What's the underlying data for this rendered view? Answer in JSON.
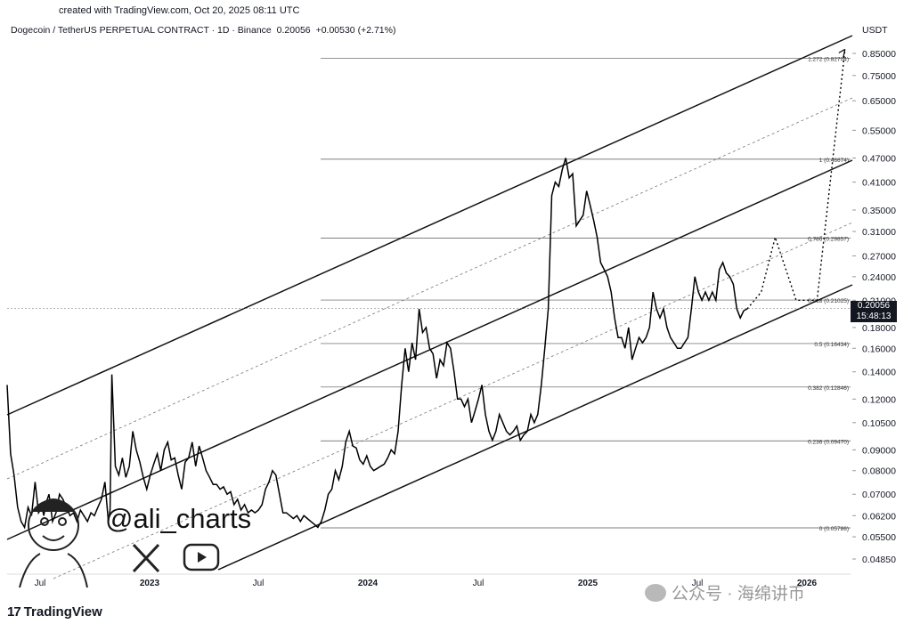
{
  "header": {
    "created": "created with TradingView.com, Oct 20, 2025 08:11 UTC",
    "symbol": "Dogecoin / TetherUS PERPETUAL CONTRACT · 1D · Binance",
    "price": "0.20056",
    "change": "+0.00530 (+2.71%)",
    "currency": "USDT"
  },
  "price_label": {
    "value": "0.20056",
    "countdown": "15:48:13"
  },
  "watermarks": {
    "handle": "@ali_charts",
    "x_icon": "x-logo-icon",
    "youtube_icon": "youtube-icon",
    "wechat": "公众号 · 海绵讲币"
  },
  "footer": {
    "brand": "TradingView",
    "brand_icon": "tradingview-logo-icon"
  },
  "chart_data": {
    "type": "line",
    "y_scale": "log",
    "x_ticks": [
      "Jul",
      "2023",
      "Jul",
      "2024",
      "Jul",
      "2025",
      "Jul",
      "2026"
    ],
    "y_ticks": [
      "0.85000",
      "0.75000",
      "0.65000",
      "0.55000",
      "0.47000",
      "0.41000",
      "0.35000",
      "0.31000",
      "0.27000",
      "0.24000",
      "0.21000",
      "0.18000",
      "0.16000",
      "0.14000",
      "0.12000",
      "0.10500",
      "0.09000",
      "0.08000",
      "0.07000",
      "0.06200",
      "0.05500",
      "0.04850"
    ],
    "fib_levels": [
      {
        "label": "1.272 (0.82704)",
        "value": 0.82704
      },
      {
        "label": "1 (0.46674)",
        "value": 0.46674
      },
      {
        "label": "0.786 (0.29857)",
        "value": 0.29857
      },
      {
        "label": "0.618 (0.21025)",
        "value": 0.21025
      },
      {
        "label": "0.5 (0.16434)",
        "value": 0.16434
      },
      {
        "label": "0.382 (0.12846)",
        "value": 0.12846
      },
      {
        "label": "0.236 (0.09470)",
        "value": 0.0947
      },
      {
        "label": "0 (0.05786)",
        "value": 0.05786
      }
    ],
    "series": [
      {
        "values": [
          [
            0.0,
            0.13
          ],
          [
            0.2,
            0.088
          ],
          [
            0.4,
            0.078
          ],
          [
            0.6,
            0.065
          ],
          [
            0.8,
            0.06
          ],
          [
            1.0,
            0.058
          ],
          [
            1.2,
            0.065
          ],
          [
            1.4,
            0.062
          ],
          [
            1.6,
            0.075
          ],
          [
            1.8,
            0.063
          ],
          [
            2.0,
            0.065
          ],
          [
            2.1,
            0.062
          ],
          [
            2.2,
            0.066
          ],
          [
            2.4,
            0.07
          ],
          [
            2.6,
            0.06
          ],
          [
            2.8,
            0.063
          ],
          [
            3.0,
            0.07
          ],
          [
            3.2,
            0.068
          ],
          [
            3.4,
            0.065
          ],
          [
            3.6,
            0.062
          ],
          [
            3.8,
            0.063
          ],
          [
            4.0,
            0.06
          ],
          [
            4.2,
            0.064
          ],
          [
            4.4,
            0.062
          ],
          [
            4.6,
            0.06
          ],
          [
            4.8,
            0.063
          ],
          [
            5.0,
            0.062
          ],
          [
            5.2,
            0.065
          ],
          [
            5.4,
            0.068
          ],
          [
            5.6,
            0.075
          ],
          [
            5.8,
            0.06
          ],
          [
            5.9,
            0.064
          ],
          [
            6.0,
            0.138
          ],
          [
            6.2,
            0.082
          ],
          [
            6.4,
            0.078
          ],
          [
            6.6,
            0.086
          ],
          [
            6.8,
            0.077
          ],
          [
            7.0,
            0.082
          ],
          [
            7.2,
            0.1
          ],
          [
            7.4,
            0.09
          ],
          [
            7.6,
            0.084
          ],
          [
            7.8,
            0.077
          ],
          [
            8.0,
            0.072
          ],
          [
            8.2,
            0.078
          ],
          [
            8.4,
            0.083
          ],
          [
            8.6,
            0.088
          ],
          [
            8.8,
            0.08
          ],
          [
            9.0,
            0.09
          ],
          [
            9.2,
            0.094
          ],
          [
            9.4,
            0.085
          ],
          [
            9.6,
            0.086
          ],
          [
            9.8,
            0.078
          ],
          [
            10.0,
            0.072
          ],
          [
            10.2,
            0.084
          ],
          [
            10.4,
            0.086
          ],
          [
            10.6,
            0.094
          ],
          [
            10.8,
            0.082
          ],
          [
            11.0,
            0.092
          ],
          [
            11.2,
            0.086
          ],
          [
            11.4,
            0.08
          ],
          [
            11.6,
            0.077
          ],
          [
            11.8,
            0.074
          ],
          [
            12.0,
            0.074
          ],
          [
            12.2,
            0.072
          ],
          [
            12.4,
            0.073
          ],
          [
            12.6,
            0.07
          ],
          [
            12.8,
            0.071
          ],
          [
            13.0,
            0.066
          ],
          [
            13.2,
            0.068
          ],
          [
            13.4,
            0.064
          ],
          [
            13.6,
            0.066
          ],
          [
            13.8,
            0.063
          ],
          [
            14.0,
            0.064
          ],
          [
            14.2,
            0.063
          ],
          [
            14.4,
            0.064
          ],
          [
            14.6,
            0.066
          ],
          [
            14.8,
            0.072
          ],
          [
            15.0,
            0.075
          ],
          [
            15.2,
            0.08
          ],
          [
            15.4,
            0.078
          ],
          [
            15.6,
            0.07
          ],
          [
            15.8,
            0.063
          ],
          [
            16.0,
            0.063
          ],
          [
            16.2,
            0.062
          ],
          [
            16.4,
            0.061
          ],
          [
            16.6,
            0.062
          ],
          [
            16.8,
            0.06
          ],
          [
            17.0,
            0.062
          ],
          [
            17.2,
            0.061
          ],
          [
            17.4,
            0.06
          ],
          [
            17.6,
            0.059
          ],
          [
            17.8,
            0.058
          ],
          [
            18.0,
            0.06
          ],
          [
            18.2,
            0.064
          ],
          [
            18.4,
            0.07
          ],
          [
            18.6,
            0.072
          ],
          [
            18.8,
            0.08
          ],
          [
            19.0,
            0.076
          ],
          [
            19.2,
            0.082
          ],
          [
            19.4,
            0.094
          ],
          [
            19.6,
            0.1
          ],
          [
            19.8,
            0.092
          ],
          [
            20.0,
            0.091
          ],
          [
            20.2,
            0.085
          ],
          [
            20.4,
            0.083
          ],
          [
            20.6,
            0.087
          ],
          [
            20.8,
            0.082
          ],
          [
            21.0,
            0.08
          ],
          [
            21.2,
            0.081
          ],
          [
            21.4,
            0.082
          ],
          [
            21.6,
            0.083
          ],
          [
            21.8,
            0.086
          ],
          [
            22.0,
            0.09
          ],
          [
            22.2,
            0.088
          ],
          [
            22.4,
            0.1
          ],
          [
            22.6,
            0.13
          ],
          [
            22.8,
            0.16
          ],
          [
            23.0,
            0.14
          ],
          [
            23.2,
            0.165
          ],
          [
            23.4,
            0.15
          ],
          [
            23.6,
            0.2
          ],
          [
            23.8,
            0.175
          ],
          [
            24.0,
            0.18
          ],
          [
            24.2,
            0.16
          ],
          [
            24.4,
            0.155
          ],
          [
            24.6,
            0.135
          ],
          [
            24.8,
            0.15
          ],
          [
            25.0,
            0.145
          ],
          [
            25.2,
            0.165
          ],
          [
            25.4,
            0.16
          ],
          [
            25.6,
            0.14
          ],
          [
            25.8,
            0.12
          ],
          [
            26.0,
            0.12
          ],
          [
            26.2,
            0.115
          ],
          [
            26.4,
            0.12
          ],
          [
            26.6,
            0.105
          ],
          [
            26.8,
            0.112
          ],
          [
            27.0,
            0.12
          ],
          [
            27.2,
            0.13
          ],
          [
            27.4,
            0.11
          ],
          [
            27.6,
            0.1
          ],
          [
            27.8,
            0.095
          ],
          [
            28.0,
            0.1
          ],
          [
            28.2,
            0.11
          ],
          [
            28.4,
            0.105
          ],
          [
            28.6,
            0.1
          ],
          [
            28.8,
            0.098
          ],
          [
            29.0,
            0.1
          ],
          [
            29.2,
            0.103
          ],
          [
            29.4,
            0.095
          ],
          [
            29.6,
            0.098
          ],
          [
            29.8,
            0.1
          ],
          [
            30.0,
            0.11
          ],
          [
            30.2,
            0.105
          ],
          [
            30.4,
            0.11
          ],
          [
            30.6,
            0.13
          ],
          [
            30.8,
            0.16
          ],
          [
            31.0,
            0.2
          ],
          [
            31.2,
            0.38
          ],
          [
            31.4,
            0.41
          ],
          [
            31.6,
            0.4
          ],
          [
            31.8,
            0.44
          ],
          [
            32.0,
            0.47
          ],
          [
            32.2,
            0.42
          ],
          [
            32.4,
            0.43
          ],
          [
            32.6,
            0.32
          ],
          [
            32.8,
            0.33
          ],
          [
            33.0,
            0.34
          ],
          [
            33.2,
            0.39
          ],
          [
            33.4,
            0.36
          ],
          [
            33.6,
            0.33
          ],
          [
            33.8,
            0.3
          ],
          [
            34.0,
            0.26
          ],
          [
            34.2,
            0.25
          ],
          [
            34.4,
            0.24
          ],
          [
            34.6,
            0.22
          ],
          [
            34.8,
            0.19
          ],
          [
            35.0,
            0.17
          ],
          [
            35.2,
            0.17
          ],
          [
            35.4,
            0.16
          ],
          [
            35.6,
            0.18
          ],
          [
            35.8,
            0.15
          ],
          [
            36.0,
            0.16
          ],
          [
            36.2,
            0.17
          ],
          [
            36.4,
            0.165
          ],
          [
            36.6,
            0.17
          ],
          [
            36.8,
            0.18
          ],
          [
            37.0,
            0.22
          ],
          [
            37.2,
            0.2
          ],
          [
            37.4,
            0.19
          ],
          [
            37.6,
            0.2
          ],
          [
            37.8,
            0.18
          ],
          [
            38.0,
            0.17
          ],
          [
            38.2,
            0.165
          ],
          [
            38.4,
            0.16
          ],
          [
            38.6,
            0.16
          ],
          [
            38.8,
            0.165
          ],
          [
            39.0,
            0.17
          ],
          [
            39.2,
            0.2
          ],
          [
            39.4,
            0.24
          ],
          [
            39.6,
            0.22
          ],
          [
            39.8,
            0.21
          ],
          [
            40.0,
            0.22
          ],
          [
            40.2,
            0.21
          ],
          [
            40.4,
            0.22
          ],
          [
            40.6,
            0.21
          ],
          [
            40.8,
            0.25
          ],
          [
            41.0,
            0.26
          ],
          [
            41.2,
            0.245
          ],
          [
            41.4,
            0.24
          ],
          [
            41.6,
            0.23
          ],
          [
            41.8,
            0.2
          ],
          [
            42.0,
            0.19
          ],
          [
            42.2,
            0.198
          ],
          [
            42.4,
            0.2
          ]
        ]
      },
      {
        "values": [
          [
            42.4,
            0.2
          ],
          [
            43.2,
            0.22
          ],
          [
            44.0,
            0.3
          ],
          [
            45.2,
            0.21
          ],
          [
            46.4,
            0.21
          ],
          [
            48.0,
            0.87
          ]
        ]
      }
    ]
  }
}
